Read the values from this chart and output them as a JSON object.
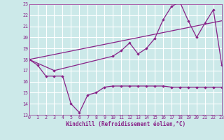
{
  "xlabel": "Windchill (Refroidissement éolien,°C)",
  "bg_color": "#cce9e9",
  "grid_color": "#ffffff",
  "line_color": "#882288",
  "xlim": [
    0,
    23
  ],
  "ylim": [
    13,
    23
  ],
  "yticks": [
    13,
    14,
    15,
    16,
    17,
    18,
    19,
    20,
    21,
    22,
    23
  ],
  "xticks": [
    0,
    1,
    2,
    3,
    4,
    5,
    6,
    7,
    8,
    9,
    10,
    11,
    12,
    13,
    14,
    15,
    16,
    17,
    18,
    19,
    20,
    21,
    22,
    23
  ],
  "line1_x": [
    0,
    1,
    2,
    3,
    4,
    5,
    6,
    7,
    8,
    9,
    10,
    11,
    12,
    13,
    14,
    15,
    16,
    17,
    18,
    19,
    20,
    21,
    22,
    23
  ],
  "line1_y": [
    18,
    17.5,
    16.5,
    16.5,
    16.5,
    14.0,
    13.2,
    14.8,
    15.0,
    15.5,
    15.6,
    15.6,
    15.6,
    15.6,
    15.6,
    15.6,
    15.6,
    15.5,
    15.5,
    15.5,
    15.5,
    15.5,
    15.5,
    15.5
  ],
  "line2_x": [
    0,
    3,
    10,
    11,
    12,
    13,
    14,
    15,
    16,
    17,
    18,
    19,
    20,
    21,
    22,
    23
  ],
  "line2_y": [
    18,
    17.0,
    18.3,
    18.8,
    19.5,
    18.5,
    19.0,
    19.9,
    21.6,
    22.8,
    23.2,
    21.5,
    20.0,
    21.3,
    22.5,
    17.5
  ],
  "line3_x": [
    0,
    23
  ],
  "line3_y": [
    18,
    21.5
  ]
}
